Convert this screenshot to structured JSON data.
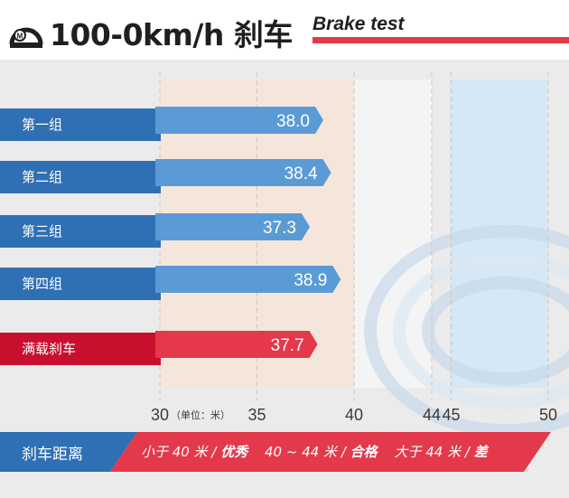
{
  "header": {
    "logo_icon": "speedometer-m-icon",
    "logo_text": "M",
    "title": "100-0km/h 刹车",
    "subtitle": "Brake test",
    "accent_color": "#e3394a"
  },
  "chart_data": {
    "type": "bar",
    "orientation": "horizontal",
    "categories": [
      "第一组",
      "第二组",
      "第三组",
      "第四组",
      "满载刹车"
    ],
    "values": [
      38.0,
      38.4,
      37.3,
      38.9,
      37.7
    ],
    "value_labels": [
      "38.0",
      "38.4",
      "37.3",
      "38.9",
      "37.7"
    ],
    "xlim": [
      30,
      50
    ],
    "x_ticks": [
      "30",
      "35",
      "40",
      "44",
      "45",
      "50"
    ],
    "x_unit_label": "（单位：米）",
    "bar_colors": [
      "#5b9bd5",
      "#5b9bd5",
      "#5b9bd5",
      "#5b9bd5",
      "#e3394a"
    ],
    "category_colors": [
      "#2f6fb4",
      "#2f6fb4",
      "#2f6fb4",
      "#2f6fb4",
      "#c8102e"
    ],
    "bands": [
      {
        "from": 30,
        "to": 40,
        "color": "#f5e6dc"
      },
      {
        "from": 40,
        "to": 44,
        "color": "#f4f4f4"
      },
      {
        "from": 45,
        "to": 50,
        "color": "#d6e7f5"
      }
    ],
    "grid": "dashed vertical at ticks"
  },
  "legend": {
    "label": "刹车距离",
    "items": [
      {
        "range": "小于 40 米 / ",
        "grade": "优秀"
      },
      {
        "range": "40 ~ 44 米 / ",
        "grade": "合格"
      },
      {
        "range": "大于 44 米 / ",
        "grade": "差"
      }
    ],
    "label_bg": "#2f6fb4",
    "items_bg": "#e3394a"
  }
}
